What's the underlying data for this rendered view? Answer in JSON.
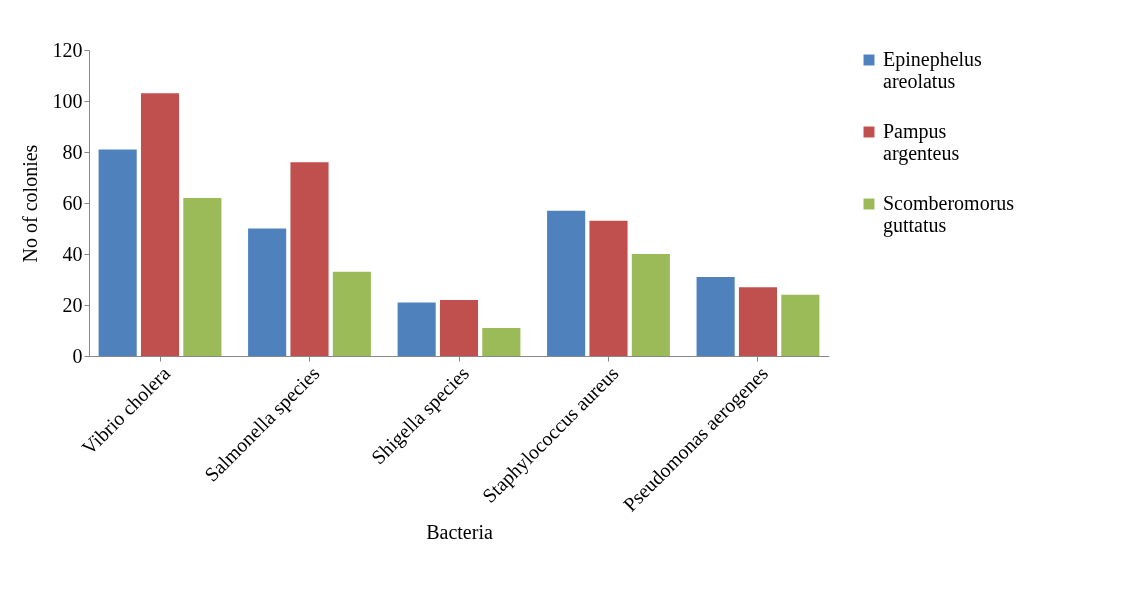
{
  "chart_data": {
    "type": "bar",
    "xlabel": "Bacteria",
    "ylabel": "No of colonies",
    "categories": [
      "Vibrio cholera",
      "Salmonella species",
      "Shigella species",
      "Staphylococcus aureus",
      "Pseudomonas aerogenes"
    ],
    "series": [
      {
        "name": "Epinephelus areolatus",
        "color": "#4f81bd",
        "values": [
          81,
          50,
          21,
          57,
          31
        ]
      },
      {
        "name": "Pampus argenteus",
        "color": "#c0504d",
        "values": [
          103,
          76,
          22,
          53,
          27
        ]
      },
      {
        "name": "Scomberomorus guttatus",
        "color": "#9bbb59",
        "values": [
          62,
          33,
          11,
          40,
          24
        ]
      }
    ],
    "ylim": [
      0,
      120
    ],
    "yticks": [
      0,
      20,
      40,
      60,
      80,
      100,
      120
    ],
    "grid": false,
    "legend": "right"
  }
}
